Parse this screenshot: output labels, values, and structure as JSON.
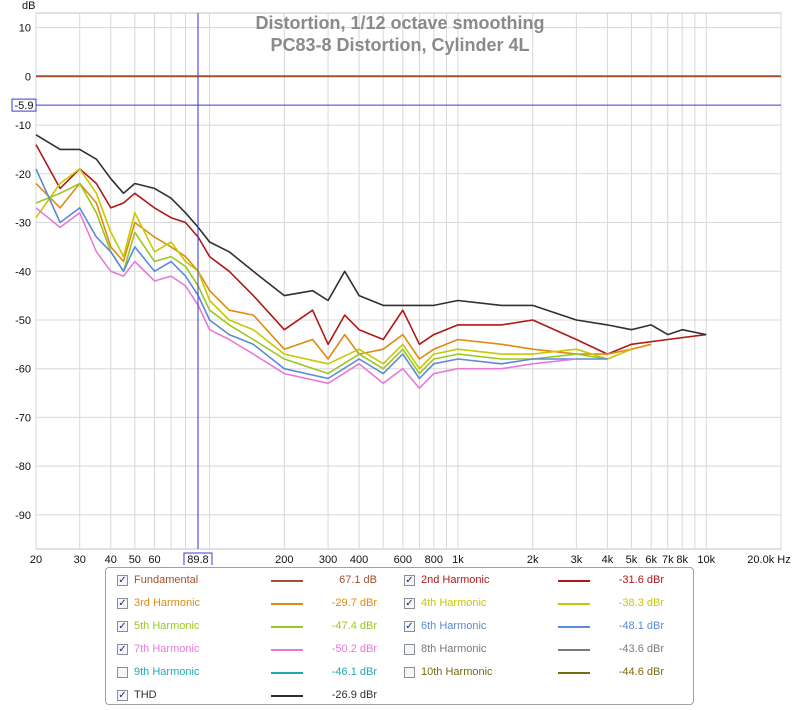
{
  "chart_data": {
    "type": "line",
    "title": "Distortion, 1/12 octave smoothing",
    "subtitle": "PC83-8 Distortion, Cylinder 4L",
    "ylabel": "dB",
    "x_unit": "Hz",
    "x_scale": "log",
    "xlim": [
      20,
      20000
    ],
    "ylim": [
      -97,
      13
    ],
    "grid": true,
    "x_ticks": [
      {
        "v": 20,
        "label": "20"
      },
      {
        "v": 30,
        "label": "30"
      },
      {
        "v": 40,
        "label": "40"
      },
      {
        "v": 50,
        "label": "50"
      },
      {
        "v": 60,
        "label": "60"
      },
      {
        "v": 200,
        "label": "200"
      },
      {
        "v": 300,
        "label": "300"
      },
      {
        "v": 400,
        "label": "400"
      },
      {
        "v": 600,
        "label": "600"
      },
      {
        "v": 800,
        "label": "800"
      },
      {
        "v": 1000,
        "label": "1k"
      },
      {
        "v": 2000,
        "label": "2k"
      },
      {
        "v": 3000,
        "label": "3k"
      },
      {
        "v": 4000,
        "label": "4k"
      },
      {
        "v": 5000,
        "label": "5k"
      },
      {
        "v": 6000,
        "label": "6k"
      },
      {
        "v": 7000,
        "label": "7k"
      },
      {
        "v": 8000,
        "label": "8k"
      },
      {
        "v": 10000,
        "label": "10k"
      },
      {
        "v": 20000,
        "label": "20.0k Hz"
      }
    ],
    "y_ticks": [
      10,
      0,
      -10,
      -20,
      -30,
      -40,
      -50,
      -60,
      -70,
      -80,
      -90
    ],
    "cursor": {
      "x": 89.8,
      "x_label": "89.8",
      "y": -5.9,
      "y_label": "-5.9"
    },
    "series": [
      {
        "name": "Fundamental",
        "color": "#a0522d",
        "x": [
          20,
          20000
        ],
        "y": [
          0,
          0
        ]
      },
      {
        "name": "2nd Harmonic",
        "color": "#b01818",
        "x": [
          20,
          25,
          30,
          35,
          40,
          45,
          50,
          60,
          70,
          80,
          90,
          100,
          120,
          150,
          200,
          260,
          300,
          350,
          400,
          500,
          600,
          700,
          800,
          1000,
          1500,
          2000,
          3000,
          4000,
          5000,
          7000,
          10000
        ],
        "y": [
          -14,
          -23,
          -19,
          -22,
          -27,
          -26,
          -24,
          -27,
          -29,
          -30,
          -33,
          -37,
          -40,
          -45,
          -52,
          -48,
          -55,
          -49,
          -52,
          -54,
          -48,
          -55,
          -53,
          -51,
          -51,
          -50,
          -54,
          -57,
          -55,
          -54,
          -53
        ]
      },
      {
        "name": "3rd Harmonic",
        "color": "#e08a10",
        "x": [
          20,
          25,
          30,
          35,
          40,
          45,
          50,
          60,
          70,
          80,
          90,
          100,
          120,
          150,
          200,
          260,
          300,
          350,
          400,
          500,
          600,
          700,
          800,
          1000,
          1500,
          2000,
          3000,
          4000,
          5000,
          6000
        ],
        "y": [
          -22,
          -27,
          -22,
          -26,
          -35,
          -38,
          -30,
          -33,
          -35,
          -37,
          -40,
          -44,
          -48,
          -49,
          -56,
          -54,
          -58,
          -53,
          -57,
          -56,
          -53,
          -58,
          -56,
          -54,
          -55,
          -56,
          -57,
          -57,
          -56,
          -55
        ]
      },
      {
        "name": "4th Harmonic",
        "color": "#c8c800",
        "x": [
          20,
          25,
          30,
          35,
          40,
          45,
          50,
          60,
          70,
          80,
          90,
          100,
          120,
          150,
          200,
          300,
          400,
          500,
          600,
          700,
          800,
          1000,
          1500,
          2000,
          3000,
          4000,
          5000
        ],
        "y": [
          -29,
          -22,
          -19,
          -24,
          -32,
          -37,
          -28,
          -36,
          -34,
          -38,
          -40,
          -46,
          -50,
          -52,
          -57,
          -59,
          -56,
          -59,
          -55,
          -60,
          -57,
          -56,
          -57,
          -57,
          -56,
          -58,
          -56
        ]
      },
      {
        "name": "5th Harmonic",
        "color": "#9ac81e",
        "x": [
          20,
          25,
          30,
          35,
          40,
          45,
          50,
          60,
          70,
          80,
          90,
          100,
          120,
          150,
          200,
          300,
          400,
          500,
          600,
          700,
          800,
          1000,
          1500,
          2000,
          3000,
          4000
        ],
        "y": [
          -26,
          -24,
          -22,
          -28,
          -36,
          -40,
          -32,
          -38,
          -37,
          -39,
          -43,
          -48,
          -51,
          -54,
          -58,
          -61,
          -57,
          -60,
          -56,
          -61,
          -58,
          -57,
          -58,
          -58,
          -57,
          -58
        ]
      },
      {
        "name": "6th Harmonic",
        "color": "#5a8ad8",
        "x": [
          20,
          25,
          30,
          35,
          40,
          45,
          50,
          60,
          70,
          80,
          90,
          100,
          120,
          150,
          200,
          300,
          400,
          500,
          600,
          700,
          800,
          1000,
          1500,
          2000,
          3000,
          4000
        ],
        "y": [
          -19,
          -30,
          -27,
          -33,
          -36,
          -40,
          -35,
          -40,
          -38,
          -41,
          -45,
          -50,
          -53,
          -55,
          -60,
          -62,
          -58,
          -61,
          -57,
          -62,
          -59,
          -58,
          -59,
          -58,
          -58,
          -58
        ]
      },
      {
        "name": "7th Harmonic",
        "color": "#e67ad8",
        "x": [
          20,
          25,
          30,
          35,
          40,
          45,
          50,
          60,
          70,
          80,
          90,
          100,
          120,
          150,
          200,
          300,
          400,
          500,
          600,
          700,
          800,
          1000,
          1500,
          2000,
          3000
        ],
        "y": [
          -27,
          -31,
          -28,
          -36,
          -40,
          -41,
          -38,
          -42,
          -41,
          -43,
          -47,
          -52,
          -54,
          -57,
          -61,
          -63,
          -59,
          -63,
          -60,
          -64,
          -61,
          -60,
          -60,
          -59,
          -58
        ]
      },
      {
        "name": "9th Harmonic",
        "color": "#20a8b0",
        "x": [],
        "y": []
      },
      {
        "name": "8th Harmonic",
        "color": "#7a7a7a",
        "x": [],
        "y": []
      },
      {
        "name": "10th Harmonic",
        "color": "#7a6a10",
        "x": [],
        "y": []
      },
      {
        "name": "THD",
        "color": "#303030",
        "x": [
          20,
          25,
          30,
          35,
          40,
          45,
          50,
          60,
          70,
          80,
          90,
          100,
          120,
          150,
          200,
          260,
          300,
          350,
          400,
          500,
          600,
          700,
          800,
          1000,
          1500,
          2000,
          3000,
          4000,
          5000,
          6000,
          7000,
          8000,
          10000
        ],
        "y": [
          -12,
          -15,
          -15,
          -17,
          -21,
          -24,
          -22,
          -23,
          -25,
          -28,
          -31,
          -34,
          -36,
          -40,
          -45,
          -44,
          -46,
          -40,
          -45,
          -47,
          -47,
          -47,
          -47,
          -46,
          -47,
          -47,
          -50,
          -51,
          -52,
          -51,
          -53,
          -52,
          -53
        ]
      }
    ]
  },
  "legend": {
    "items": [
      {
        "name": "Fundamental",
        "value": "67.1 dB",
        "color": "#a0522d",
        "checked": true
      },
      {
        "name": "2nd Harmonic",
        "value": "-31.6 dBr",
        "color": "#b01818",
        "checked": true
      },
      {
        "name": "3rd Harmonic",
        "value": "-29.7 dBr",
        "color": "#e08a10",
        "checked": true
      },
      {
        "name": "4th Harmonic",
        "value": "-38.3 dBr",
        "color": "#c8c800",
        "checked": true
      },
      {
        "name": "5th Harmonic",
        "value": "-47.4 dBr",
        "color": "#9ac81e",
        "checked": true
      },
      {
        "name": "6th Harmonic",
        "value": "-48.1 dBr",
        "color": "#5a8ad8",
        "checked": true
      },
      {
        "name": "7th Harmonic",
        "value": "-50.2 dBr",
        "color": "#e67ad8",
        "checked": true
      },
      {
        "name": "8th Harmonic",
        "value": "-43.6 dBr",
        "color": "#7a7a7a",
        "checked": false
      },
      {
        "name": "9th Harmonic",
        "value": "-46.1 dBr",
        "color": "#20a8b0",
        "checked": false
      },
      {
        "name": "10th Harmonic",
        "value": "-44.6 dBr",
        "color": "#7a6a10",
        "checked": false
      },
      {
        "name": "THD",
        "value": "-26.9 dBr",
        "color": "#303030",
        "checked": true
      }
    ]
  }
}
